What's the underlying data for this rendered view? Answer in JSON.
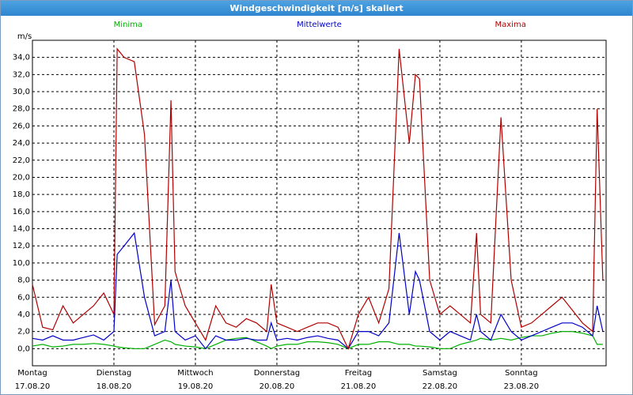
{
  "window_title": "Windgeschwindigkeit [m/s] skaliert",
  "chart_data": {
    "type": "line",
    "y_label": "m/s",
    "legend": "top",
    "grid": true,
    "x": [
      0,
      0.125,
      0.25,
      0.375,
      0.5,
      0.625,
      0.75,
      0.875,
      1,
      1.04,
      1.125,
      1.25,
      1.375,
      1.5,
      1.625,
      1.7,
      1.75,
      1.875,
      2,
      2.125,
      2.25,
      2.375,
      2.5,
      2.625,
      2.75,
      2.875,
      2.93,
      3,
      3.125,
      3.25,
      3.375,
      3.5,
      3.625,
      3.75,
      3.875,
      4,
      4.125,
      4.25,
      4.375,
      4.5,
      4.625,
      4.7,
      4.75,
      4.875,
      5,
      5.125,
      5.25,
      5.375,
      5.45,
      5.5,
      5.625,
      5.75,
      5.875,
      6,
      6.125,
      6.25,
      6.375,
      6.5,
      6.625,
      6.75,
      6.875,
      6.93,
      7
    ],
    "xlim": [
      0,
      7.04
    ],
    "xticks": [
      {
        "value": 0,
        "label": "Montag",
        "date": "17.08.20"
      },
      {
        "value": 1,
        "label": "Dienstag",
        "date": "18.08.20"
      },
      {
        "value": 2,
        "label": "Mittwoch",
        "date": "19.08.20"
      },
      {
        "value": 3,
        "label": "Donnerstag",
        "date": "20.08.20"
      },
      {
        "value": 4,
        "label": "Freitag",
        "date": "21.08.20"
      },
      {
        "value": 5,
        "label": "Samstag",
        "date": "22.08.20"
      },
      {
        "value": 6,
        "label": "Sonntag",
        "date": "23.08.20"
      }
    ],
    "ylim": [
      -2,
      36
    ],
    "yticks": [
      {
        "value": 0,
        "label": "0,0"
      },
      {
        "value": 2,
        "label": "2,0"
      },
      {
        "value": 4,
        "label": "4,0"
      },
      {
        "value": 6,
        "label": "6,0"
      },
      {
        "value": 8,
        "label": "8,0"
      },
      {
        "value": 10,
        "label": "10,0"
      },
      {
        "value": 12,
        "label": "12,0"
      },
      {
        "value": 14,
        "label": "14,0"
      },
      {
        "value": 16,
        "label": "16,0"
      },
      {
        "value": 18,
        "label": "18,0"
      },
      {
        "value": 20,
        "label": "20,0"
      },
      {
        "value": 22,
        "label": "22,0"
      },
      {
        "value": 24,
        "label": "24,0"
      },
      {
        "value": 26,
        "label": "26,0"
      },
      {
        "value": 28,
        "label": "28,0"
      },
      {
        "value": 30,
        "label": "30,0"
      },
      {
        "value": 32,
        "label": "32,0"
      },
      {
        "value": 34,
        "label": "34,0"
      }
    ],
    "series": [
      {
        "name": "Minima",
        "color": "#00b000",
        "values": [
          0.3,
          0.5,
          0.2,
          0.3,
          0.5,
          0.5,
          0.6,
          0.5,
          0.3,
          0.2,
          0.1,
          0,
          0,
          0.5,
          1,
          0.8,
          0.5,
          0.3,
          0.2,
          0,
          0.5,
          1,
          1.2,
          1.3,
          0.8,
          0.3,
          0,
          0.3,
          0.5,
          0.5,
          0.8,
          0.8,
          0.7,
          0.5,
          0,
          0.5,
          0.5,
          0.8,
          0.8,
          0.5,
          0.5,
          0.3,
          0.3,
          0.2,
          0,
          0,
          0.5,
          0.8,
          1,
          1.2,
          1,
          1.2,
          1,
          1.3,
          1.5,
          1.5,
          1.8,
          2,
          2,
          1.8,
          1.5,
          0.5,
          0.5
        ]
      },
      {
        "name": "Mittelwerte",
        "color": "#0000c8",
        "values": [
          1.2,
          1,
          1.5,
          1,
          1,
          1.3,
          1.6,
          1,
          2,
          11,
          12,
          13.5,
          6,
          1.5,
          2,
          8,
          2,
          1,
          1.5,
          0,
          1.5,
          1,
          1,
          1.2,
          1,
          1,
          3,
          1,
          1.2,
          1,
          1.3,
          1.5,
          1.2,
          1,
          0,
          2,
          2,
          1.5,
          3,
          13.5,
          4,
          9,
          8,
          2,
          1,
          2,
          1.5,
          1,
          4,
          2,
          1,
          4,
          2,
          1,
          1.5,
          2,
          2.5,
          3,
          3,
          2.5,
          1.5,
          5,
          2
        ]
      },
      {
        "name": "Maxima",
        "color": "#b00000",
        "values": [
          7.5,
          2.5,
          2.2,
          5,
          3,
          4,
          5,
          6.5,
          4,
          35,
          34,
          33.5,
          25,
          2.8,
          5,
          29,
          9,
          5,
          3,
          1,
          5,
          3,
          2.5,
          3.5,
          3,
          2,
          7.5,
          3,
          2.5,
          2,
          2.5,
          3,
          3,
          2.5,
          0,
          4,
          6,
          3,
          7,
          35,
          24,
          32,
          31.5,
          8,
          4,
          5,
          4,
          3,
          13.5,
          4,
          3,
          27,
          8,
          2.5,
          3,
          4,
          5,
          6,
          4.5,
          3,
          2,
          28,
          8
        ]
      }
    ]
  }
}
